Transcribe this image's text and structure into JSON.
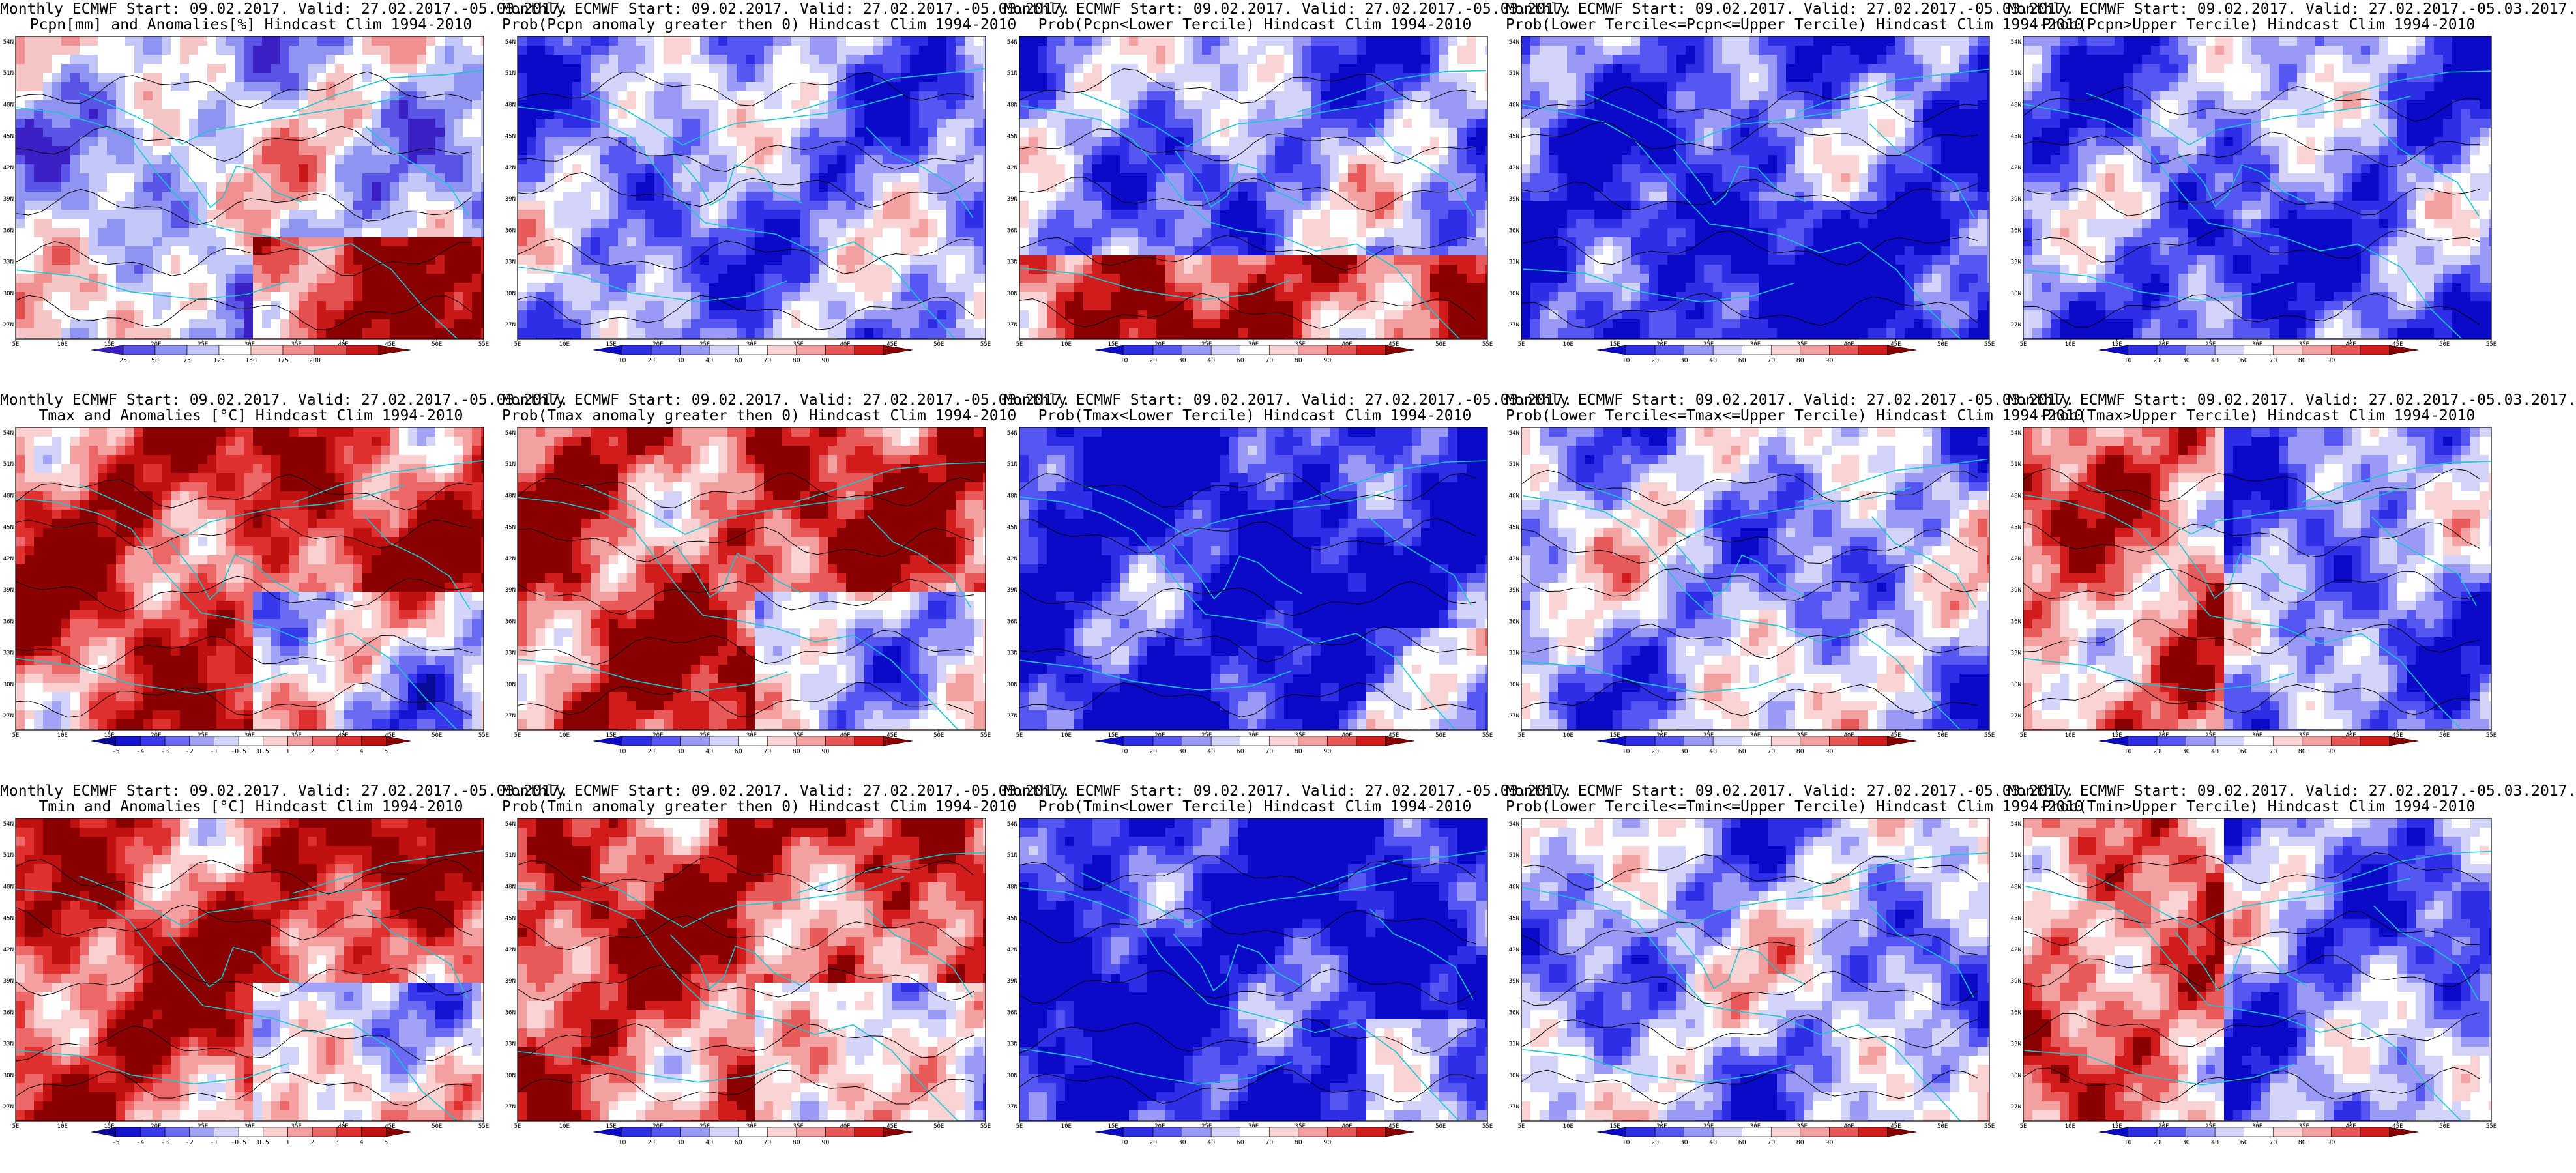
{
  "page": {
    "background": "#ffffff"
  },
  "panels": [
    {
      "title1": "Monthly ECMWF Start: 09.02.2017. Valid: 27.02.2017.-05.03.2017.",
      "title2": "Pcpn[mm] and Anomalies[%] Hindcast Clim 1994-2010",
      "field_kind": "anomaly",
      "variable": "precipitation",
      "scale": "pcpn_anom",
      "map_icon": "precip-anomaly-map"
    },
    {
      "title1": "Monthly ECMWF Start: 09.02.2017. Valid: 27.02.2017.-05.03.2017.",
      "title2": "Prob(Pcpn anomaly greater then 0) Hindcast Clim 1994-2010",
      "field_kind": "prob",
      "variable": "precipitation",
      "scale": "prob",
      "map_icon": "precip-probability-map"
    },
    {
      "title1": "Monthly ECMWF Start: 09.02.2017. Valid: 27.02.2017.-05.03.2017.",
      "title2": "Prob(Pcpn<Lower Tercile) Hindcast Clim 1994-2010",
      "field_kind": "prob",
      "variable": "precipitation",
      "scale": "prob",
      "map_icon": "precip-probability-map"
    },
    {
      "title1": "Monthly ECMWF Start: 09.02.2017. Valid: 27.02.2017.-05.03.2017.",
      "title2": "Prob(Lower Tercile<=Pcpn<=Upper Tercile) Hindcast Clim 1994-2010",
      "field_kind": "prob",
      "variable": "precipitation",
      "scale": "prob",
      "map_icon": "precip-probability-map"
    },
    {
      "title1": "Monthly ECMWF Start: 09.02.2017. Valid: 27.02.2017.-05.03.2017.",
      "title2": "Prob(Pcpn>Upper Tercile) Hindcast Clim 1994-2010",
      "field_kind": "prob",
      "variable": "precipitation",
      "scale": "prob",
      "map_icon": "precip-probability-map"
    },
    {
      "title1": "Monthly ECMWF Start: 09.02.2017. Valid: 27.02.2017.-05.03.2017.",
      "title2": "Tmax and Anomalies [°C] Hindcast Clim 1994-2010",
      "field_kind": "anomaly",
      "variable": "tmax",
      "scale": "temp_anom",
      "map_icon": "temperature-anomaly-map"
    },
    {
      "title1": "Monthly ECMWF Start: 09.02.2017. Valid: 27.02.2017.-05.03.2017.",
      "title2": "Prob(Tmax anomaly greater then 0) Hindcast Clim 1994-2010",
      "field_kind": "prob",
      "variable": "tmax",
      "scale": "prob",
      "map_icon": "temperature-probability-map"
    },
    {
      "title1": "Monthly ECMWF Start: 09.02.2017. Valid: 27.02.2017.-05.03.2017.",
      "title2": "Prob(Tmax<Lower Tercile) Hindcast Clim 1994-2010",
      "field_kind": "prob",
      "variable": "tmax",
      "scale": "prob",
      "map_icon": "temperature-probability-map"
    },
    {
      "title1": "Monthly ECMWF Start: 09.02.2017. Valid: 27.02.2017.-05.03.2017.",
      "title2": "Prob(Lower Tercile<=Tmax<=Upper Tercile) Hindcast Clim 1994-2010",
      "field_kind": "prob",
      "variable": "tmax",
      "scale": "prob",
      "map_icon": "temperature-probability-map"
    },
    {
      "title1": "Monthly ECMWF Start: 09.02.2017. Valid: 27.02.2017.-05.03.2017.",
      "title2": "Prob(Tmax>Upper Tercile) Hindcast Clim 1994-2010",
      "field_kind": "prob",
      "variable": "tmax",
      "scale": "prob",
      "map_icon": "temperature-probability-map"
    },
    {
      "title1": "Monthly ECMWF Start: 09.02.2017. Valid: 27.02.2017.-05.03.2017.",
      "title2": "Tmin and Anomalies [°C] Hindcast Clim 1994-2010",
      "field_kind": "anomaly",
      "variable": "tmin",
      "scale": "temp_anom",
      "map_icon": "temperature-anomaly-map"
    },
    {
      "title1": "Monthly ECMWF Start: 09.02.2017. Valid: 27.02.2017.-05.03.2017.",
      "title2": "Prob(Tmin anomaly greater then 0) Hindcast Clim 1994-2010",
      "field_kind": "prob",
      "variable": "tmin",
      "scale": "prob",
      "map_icon": "temperature-probability-map"
    },
    {
      "title1": "Monthly ECMWF Start: 09.02.2017. Valid: 27.02.2017.-05.03.2017.",
      "title2": "Prob(Tmin<Lower Tercile) Hindcast Clim 1994-2010",
      "field_kind": "prob",
      "variable": "tmin",
      "scale": "prob",
      "map_icon": "temperature-probability-map"
    },
    {
      "title1": "Monthly ECMWF Start: 09.02.2017. Valid: 27.02.2017.-05.03.2017.",
      "title2": "Prob(Lower Tercile<=Tmin<=Upper Tercile) Hindcast Clim 1994-2010",
      "field_kind": "prob",
      "variable": "tmin",
      "scale": "prob",
      "map_icon": "temperature-probability-map"
    },
    {
      "title1": "Monthly ECMWF Start: 09.02.2017. Valid: 27.02.2017.-05.03.2017.",
      "title2": "Prob(Tmin>Upper Tercile) Hindcast Clim 1994-2010",
      "field_kind": "prob",
      "variable": "tmin",
      "scale": "prob",
      "map_icon": "temperature-probability-map"
    }
  ],
  "axes": {
    "lon_labels": [
      "5E",
      "10E",
      "15E",
      "20E",
      "25E",
      "30E",
      "35E",
      "40E",
      "45E",
      "50E",
      "55E"
    ],
    "lat_labels": [
      "54N",
      "51N",
      "48N",
      "45N",
      "42N",
      "39N",
      "36N",
      "33N",
      "30N",
      "27N"
    ]
  },
  "scales": {
    "pcpn_anom": {
      "labels": [
        "25",
        "50",
        "75",
        "125",
        "150",
        "175",
        "200"
      ],
      "colors": [
        "#3a1fc4",
        "#5a55e6",
        "#8f93f2",
        "#c4c8f8",
        "#ffffff",
        "#f6c6c6",
        "#f09090",
        "#e45050",
        "#c81818",
        "#8a0000"
      ]
    },
    "prob": {
      "labels": [
        "10",
        "20",
        "30",
        "40",
        "60",
        "70",
        "80",
        "90"
      ],
      "colors": [
        "#0a0ac8",
        "#2e2ee6",
        "#5656f2",
        "#9a9af6",
        "#d4d4fa",
        "#ffffff",
        "#fad4d4",
        "#f2a0a0",
        "#e85a5a",
        "#d21c1c",
        "#8a0000"
      ]
    },
    "temp_anom": {
      "labels": [
        "-5",
        "-4",
        "-3",
        "-2",
        "-1",
        "-0.5",
        "0.5",
        "1",
        "2",
        "3",
        "4",
        "5"
      ],
      "colors": [
        "#0a0a9a",
        "#1414d2",
        "#3838ec",
        "#6a6af2",
        "#a2a2f6",
        "#d4d4fa",
        "#ffffff",
        "#fad0d0",
        "#f4a0a0",
        "#ec6868",
        "#e03030",
        "#c01010",
        "#8a0000"
      ]
    }
  },
  "colors": {
    "coast": "#16c8d2",
    "contour": "#000000"
  }
}
